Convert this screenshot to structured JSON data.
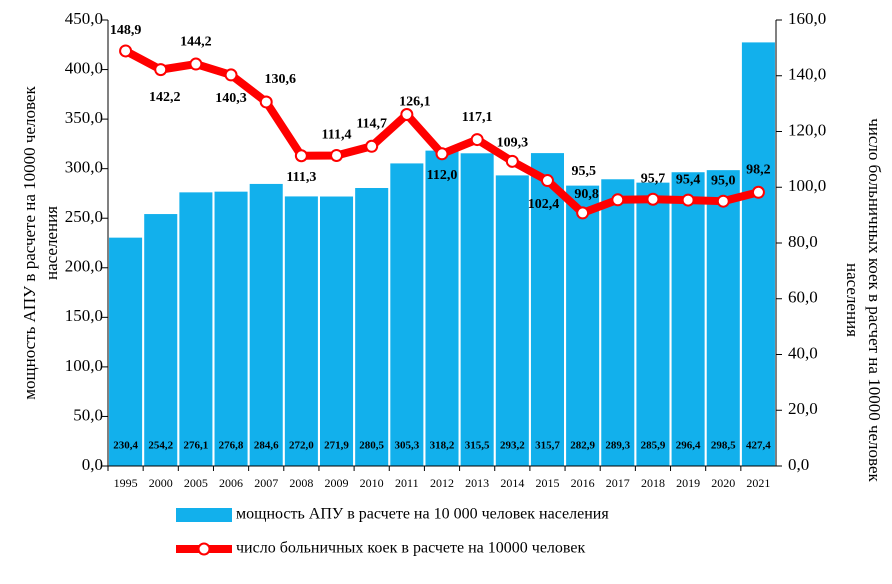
{
  "chart_data": {
    "type": "bar_line",
    "categories": [
      "1995",
      "2000",
      "2005",
      "2006",
      "2007",
      "2008",
      "2009",
      "2010",
      "2011",
      "2012",
      "2013",
      "2014",
      "2015",
      "2016",
      "2017",
      "2018",
      "2019",
      "2020",
      "2021"
    ],
    "series": [
      {
        "name": "мощность АПУ в расчете на 10 000 человек населения",
        "type": "bar",
        "color": "#12b0ec",
        "values": [
          230.4,
          254.2,
          276.1,
          276.8,
          284.6,
          272.0,
          271.9,
          280.5,
          305.3,
          318.2,
          315.5,
          293.2,
          315.7,
          282.9,
          289.3,
          285.9,
          296.4,
          298.5,
          427.4
        ],
        "value_labels": [
          "230,4",
          "254,2",
          "276,1",
          "276,8",
          "284,6",
          "272,0",
          "271,9",
          "280,5",
          "305,3",
          "318,2",
          "315,5",
          "293,2",
          "315,7",
          "282,9",
          "289,3",
          "285,9",
          "296,4",
          "298,5",
          "427,4"
        ]
      },
      {
        "name": "число больничных коек в расчете на 10000 человек",
        "type": "line",
        "axis": "y2",
        "color": "#ff0000",
        "values": [
          148.9,
          142.2,
          144.2,
          140.3,
          130.6,
          111.3,
          111.4,
          114.7,
          126.1,
          112.0,
          117.1,
          109.3,
          102.4,
          90.8,
          95.5,
          95.7,
          95.4,
          95.0,
          98.2
        ],
        "value_labels": [
          "148,9",
          "142,2",
          "144,2",
          "140,3",
          "130,6",
          "111,3",
          "111,4",
          "114,7",
          "126,1",
          "112,0",
          "117,1",
          "109,3",
          "102,4",
          "90,8",
          "95,5",
          "95,7",
          "95,4",
          "95,0",
          "98,2"
        ]
      }
    ],
    "y_label": [
      "мощность АПУ  в  расчете на 10000 человек",
      "населения"
    ],
    "y2_label": [
      "число больничных коек в расчет на 10000 человек",
      "населения"
    ],
    "ylim": [
      0,
      450
    ],
    "yticks": [
      {
        "value": 0,
        "label": "0,0"
      },
      {
        "value": 50,
        "label": "50,0"
      },
      {
        "value": 100,
        "label": "100,0"
      },
      {
        "value": 150,
        "label": "150,0"
      },
      {
        "value": 200,
        "label": "200,0"
      },
      {
        "value": 250,
        "label": "250,0"
      },
      {
        "value": 300,
        "label": "300,0"
      },
      {
        "value": 350,
        "label": "350,0"
      },
      {
        "value": 400,
        "label": "400,0"
      },
      {
        "value": 450,
        "label": "450,0"
      }
    ],
    "y2lim": [
      0,
      160
    ],
    "y2ticks": [
      {
        "value": 0,
        "label": "0,0"
      },
      {
        "value": 20,
        "label": "20,0"
      },
      {
        "value": 40,
        "label": "40,0"
      },
      {
        "value": 60,
        "label": "60,0"
      },
      {
        "value": 80,
        "label": "80,0"
      },
      {
        "value": 100,
        "label": "100,0"
      },
      {
        "value": 120,
        "label": "120,0"
      },
      {
        "value": 140,
        "label": "140,0"
      },
      {
        "value": 160,
        "label": "160,0"
      }
    ]
  }
}
